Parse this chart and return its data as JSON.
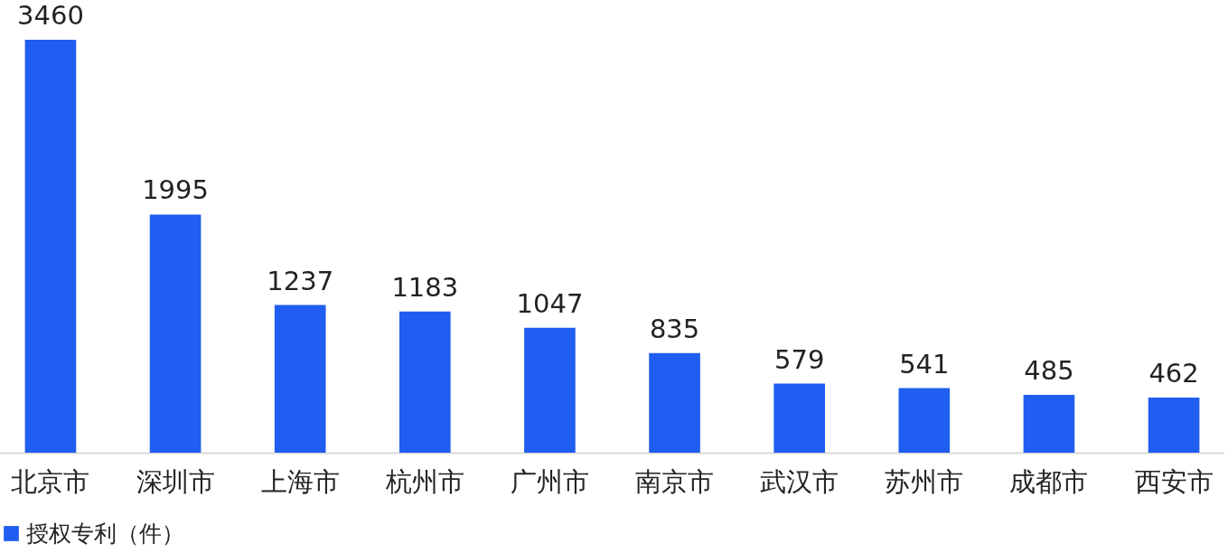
{
  "chart_data": {
    "type": "bar",
    "categories": [
      "北京市",
      "深圳市",
      "上海市",
      "杭州市",
      "广州市",
      "南京市",
      "武汉市",
      "苏州市",
      "成都市",
      "西安市"
    ],
    "series": [
      {
        "name": "授权专利（件）",
        "color": "#1f5ef0",
        "values": [
          3460,
          1995,
          1237,
          1183,
          1047,
          835,
          579,
          541,
          485,
          462
        ]
      }
    ],
    "data_labels": true,
    "legend": "bottom",
    "tick_labels": "x"
  }
}
